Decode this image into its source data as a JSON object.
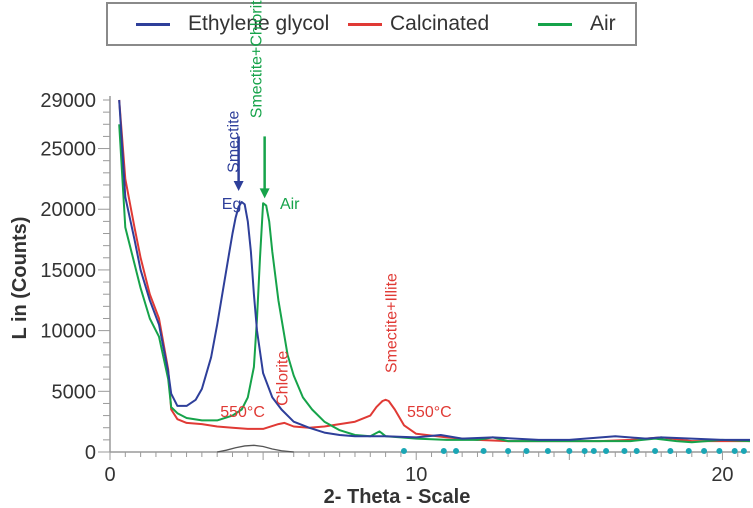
{
  "chart_data": {
    "type": "line",
    "title": "",
    "xlabel": "2- Theta - Scale",
    "ylabel": "L in (Counts)",
    "xlim": [
      0,
      20.9
    ],
    "ylim": [
      0,
      29000
    ],
    "x_ticks": [
      0,
      10,
      20
    ],
    "y_ticks": [
      0,
      5000,
      10000,
      15000,
      20000,
      25000,
      29000
    ],
    "x_tick_labels": [
      "0",
      "10",
      "20"
    ],
    "y_tick_labels": [
      "0",
      "5000",
      "10000",
      "15000",
      "20000",
      "25000",
      "29000"
    ],
    "grid": false,
    "legend_position": "top",
    "series": [
      {
        "name": "Ethylene glycol",
        "color": "#2e3f9a",
        "x": [
          0.3,
          0.5,
          0.8,
          1.0,
          1.3,
          1.6,
          1.9,
          2.0,
          2.2,
          2.5,
          2.8,
          3.0,
          3.3,
          3.5,
          3.7,
          3.9,
          4.0,
          4.1,
          4.2,
          4.3,
          4.4,
          4.5,
          4.6,
          4.7,
          4.8,
          5.0,
          5.3,
          5.6,
          6.0,
          6.5,
          7.0,
          7.5,
          8.0,
          8.5,
          9.0,
          10.0,
          10.8,
          11.5,
          12.5,
          14.0,
          15.0,
          16.5,
          17.5,
          18.0,
          19.0,
          20.0,
          20.9
        ],
        "values": [
          29000,
          21000,
          17500,
          15000,
          12500,
          10500,
          6600,
          4800,
          3800,
          3800,
          4300,
          5200,
          7800,
          10500,
          13500,
          16500,
          18000,
          19300,
          20200,
          20600,
          20400,
          19000,
          16500,
          13000,
          10000,
          6500,
          4500,
          3500,
          2500,
          2000,
          1600,
          1400,
          1300,
          1300,
          1300,
          1200,
          1400,
          1100,
          1200,
          1000,
          1000,
          1300,
          1100,
          1200,
          1100,
          1000,
          1000
        ]
      },
      {
        "name": "Calcinated",
        "color": "#e03a35",
        "x": [
          0.3,
          0.5,
          0.8,
          1.0,
          1.3,
          1.6,
          1.9,
          2.0,
          2.2,
          2.5,
          3.0,
          3.5,
          4.0,
          4.5,
          5.0,
          5.5,
          5.7,
          6.0,
          6.5,
          7.0,
          7.5,
          8.0,
          8.5,
          8.7,
          8.9,
          9.0,
          9.1,
          9.3,
          9.6,
          10.0,
          11.0,
          12.0,
          13.0,
          14.0,
          15.0,
          16.0,
          17.0,
          18.0,
          19.0,
          20.0,
          20.9
        ],
        "values": [
          29000,
          22500,
          18500,
          16000,
          13000,
          11000,
          6800,
          3500,
          2700,
          2400,
          2300,
          2100,
          2000,
          1900,
          1900,
          2300,
          2400,
          2100,
          2000,
          2100,
          2300,
          2500,
          3000,
          3700,
          4200,
          4300,
          4200,
          3500,
          2200,
          1500,
          1200,
          1000,
          900,
          900,
          900,
          900,
          1000,
          1200,
          900,
          900,
          900
        ]
      },
      {
        "name": "Air",
        "color": "#16a34a",
        "x": [
          0.3,
          0.5,
          0.8,
          1.0,
          1.3,
          1.6,
          1.9,
          2.0,
          2.2,
          2.5,
          3.0,
          3.5,
          4.0,
          4.3,
          4.5,
          4.7,
          4.8,
          4.9,
          5.0,
          5.1,
          5.2,
          5.3,
          5.5,
          5.8,
          6.0,
          6.3,
          6.6,
          7.0,
          7.5,
          8.0,
          8.5,
          8.8,
          9.0,
          9.5,
          10.0,
          11.0,
          12.0,
          12.5,
          13.0,
          14.0,
          15.0,
          16.0,
          17.0,
          17.8,
          18.5,
          19.0,
          20.0,
          20.9
        ],
        "values": [
          27000,
          18500,
          15500,
          13500,
          11000,
          9500,
          6000,
          3700,
          3200,
          2800,
          2600,
          2600,
          3000,
          3500,
          4500,
          7000,
          11000,
          16000,
          20500,
          20300,
          19000,
          16500,
          12500,
          8000,
          6300,
          4500,
          3500,
          2500,
          1800,
          1400,
          1300,
          1700,
          1300,
          1200,
          1100,
          1000,
          1000,
          1200,
          900,
          900,
          900,
          900,
          900,
          1100,
          900,
          800,
          1000,
          900
        ]
      }
    ],
    "baseline_trace": {
      "color": "#555555",
      "x": [
        3.5,
        3.8,
        4.1,
        4.4,
        4.7,
        5.0,
        5.3,
        5.6,
        6.0
      ],
      "values": [
        0,
        150,
        350,
        500,
        550,
        450,
        250,
        100,
        0
      ]
    },
    "reference_markers": {
      "color": "#1aa6b5",
      "x": [
        9.6,
        10.9,
        11.3,
        12.2,
        13.0,
        13.6,
        14.3,
        15.0,
        15.5,
        15.8,
        16.2,
        16.8,
        17.2,
        17.8,
        18.3,
        18.9,
        19.4,
        19.9,
        20.4,
        20.7
      ]
    },
    "annotations": [
      {
        "text": "Smectite",
        "color": "#2e3f9a",
        "vertical": true,
        "x": 4.2,
        "y": 23000
      },
      {
        "text": "Smectite+Chlorite",
        "color": "#16a34a",
        "vertical": true,
        "x": 4.95,
        "y": 27500
      },
      {
        "text": "Eg",
        "color": "#2e3f9a",
        "vertical": false,
        "x": 3.65,
        "y": 20000
      },
      {
        "text": "Air",
        "color": "#16a34a",
        "vertical": false,
        "x": 5.55,
        "y": 20000
      },
      {
        "text": "550°C",
        "color": "#e03a35",
        "vertical": false,
        "x": 3.6,
        "y": 2900
      },
      {
        "text": "Chlorite",
        "color": "#e03a35",
        "vertical": true,
        "x": 5.8,
        "y": 3800
      },
      {
        "text": "Smectite+Illite",
        "color": "#e03a35",
        "vertical": true,
        "x": 9.35,
        "y": 6500
      },
      {
        "text": "550°C",
        "color": "#e03a35",
        "vertical": false,
        "x": 9.7,
        "y": 2900
      }
    ],
    "arrows": [
      {
        "color": "#2e3f9a",
        "x": 4.2,
        "y_from": 26000,
        "y_to": 21500
      },
      {
        "color": "#16a34a",
        "x": 5.05,
        "y_from": 26000,
        "y_to": 20900
      }
    ]
  }
}
